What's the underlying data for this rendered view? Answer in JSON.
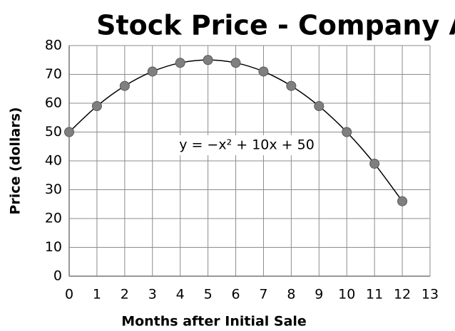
{
  "chart_data": {
    "type": "scatter",
    "title": "Stock Price - Company A",
    "x_label": "Months after Initial Sale",
    "y_label": "Price (dollars)",
    "annotation": "y = −x² + 10x + 50",
    "series": [
      {
        "color": "#7f7f7f",
        "trendline": true,
        "x": [
          0,
          1,
          2,
          3,
          4,
          5,
          6,
          7,
          8,
          9,
          10,
          11,
          12
        ],
        "values": [
          50,
          59,
          66,
          71,
          74,
          75,
          74,
          71,
          66,
          59,
          50,
          39,
          26
        ]
      }
    ],
    "xlim": [
      0,
      13
    ],
    "xticks": [
      0,
      1,
      2,
      3,
      4,
      5,
      6,
      7,
      8,
      9,
      10,
      11,
      12,
      13
    ],
    "ylim": [
      0,
      80
    ],
    "yticks": [
      0,
      10,
      20,
      30,
      40,
      50,
      60,
      70,
      80
    ],
    "grid": true
  }
}
